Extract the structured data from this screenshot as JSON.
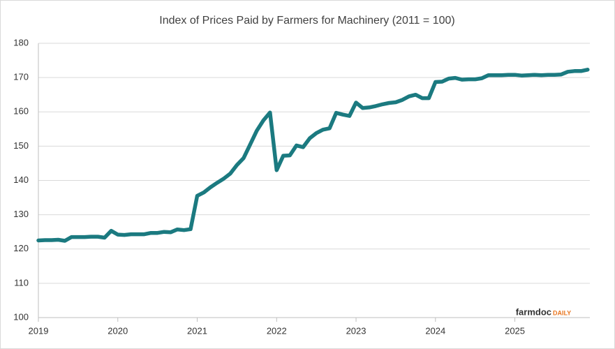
{
  "chart_data": {
    "type": "line",
    "title": "Index of Prices Paid by Farmers for Machinery (2011 = 100)",
    "categories": [
      "2019",
      null,
      null,
      null,
      null,
      null,
      null,
      null,
      null,
      null,
      null,
      null,
      "2020",
      null,
      null,
      null,
      null,
      null,
      null,
      null,
      null,
      null,
      null,
      null,
      "2021",
      null,
      null,
      null,
      null,
      null,
      null,
      null,
      null,
      null,
      null,
      null,
      "2022",
      null,
      null,
      null,
      null,
      null,
      null,
      null,
      null,
      null,
      null,
      null,
      "2023",
      null,
      null,
      null,
      null,
      null,
      null,
      null,
      null,
      null,
      null,
      null,
      "2024",
      null,
      null,
      null,
      null,
      null,
      null,
      null,
      null,
      null,
      null,
      null,
      "2025",
      null,
      null,
      null,
      null,
      null,
      null,
      null,
      null,
      null,
      null,
      null
    ],
    "values": [
      122.5,
      122.6,
      122.6,
      122.7,
      122.4,
      123.5,
      123.5,
      123.5,
      123.6,
      123.6,
      123.3,
      125.3,
      124.2,
      124.1,
      124.3,
      124.3,
      124.3,
      124.7,
      124.7,
      125.0,
      124.9,
      125.7,
      125.5,
      125.8,
      135.5,
      136.5,
      138.0,
      139.3,
      140.5,
      142.0,
      144.5,
      146.5,
      150.5,
      154.5,
      157.5,
      159.8,
      143.0,
      147.2,
      147.3,
      150.2,
      149.7,
      152.3,
      153.8,
      154.8,
      155.2,
      159.7,
      159.2,
      158.8,
      162.7,
      161.1,
      161.3,
      161.7,
      162.2,
      162.6,
      162.8,
      163.5,
      164.5,
      165.0,
      164.0,
      164.0,
      168.7,
      168.8,
      169.7,
      169.9,
      169.4,
      169.5,
      169.5,
      169.8,
      170.7,
      170.7,
      170.7,
      170.8,
      170.8,
      170.6,
      170.7,
      170.8,
      170.7,
      170.8,
      170.8,
      170.9,
      171.7,
      171.9,
      171.9,
      172.3
    ],
    "color": "#1b7a80",
    "ylim": [
      100,
      180
    ],
    "yticks": [
      100,
      110,
      120,
      130,
      140,
      150,
      160,
      170,
      180
    ],
    "grid": true,
    "logo": [
      "farmdoc",
      "DAILY"
    ]
  }
}
